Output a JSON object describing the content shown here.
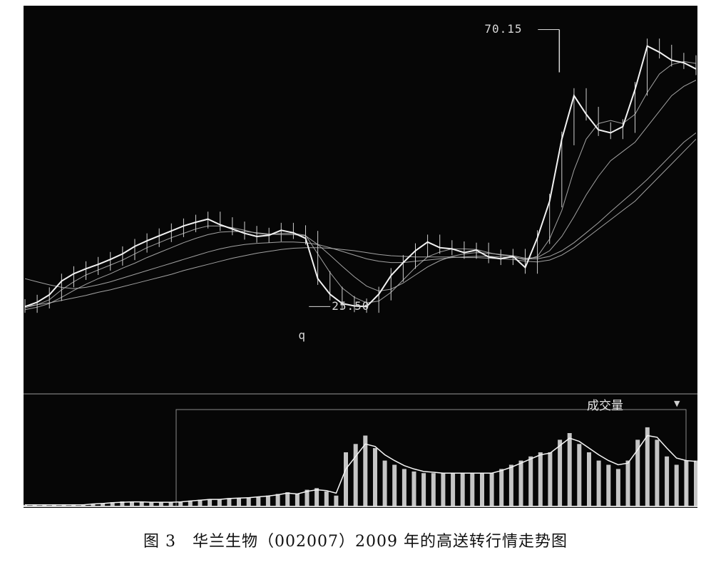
{
  "caption": "图 3　华兰生物（002007）2009 年的高送转行情走势图",
  "volume_panel": {
    "label": "成交量",
    "dropdown_icon": "triangle-down-icon"
  },
  "colors": {
    "background": "#060606",
    "price": "#f2f2f2",
    "ma": "#bdbdbd",
    "volume": "#e8e8e8",
    "text": "#d8d8d8"
  },
  "chart_data": [
    {
      "type": "candlestick",
      "title": "",
      "xlabel": "",
      "ylabel": "",
      "grid": false,
      "ylim": [
        12,
        74
      ],
      "annotations": [
        {
          "text": "70.15",
          "x": 172,
          "y": 70.15
        },
        {
          "text": "25.50",
          "x": 96,
          "y": 25.5
        },
        {
          "text": "q",
          "x": 88,
          "y": 22
        }
      ],
      "series": [
        {
          "values": [
            25.5,
            26.2,
            27.4,
            29.6,
            30.8,
            31.6,
            32.3,
            33.1,
            34.0,
            35.2,
            36.1,
            36.9,
            37.7,
            38.5,
            39.1,
            39.6,
            38.7,
            38.0,
            37.3,
            36.8,
            37.0,
            37.8,
            37.4,
            36.5,
            30.0,
            27.5,
            26.0,
            25.6,
            25.5,
            27.5,
            30.5,
            32.6,
            34.5,
            35.9,
            35.0,
            34.8,
            34.2,
            34.6,
            33.5,
            33.2,
            33.6,
            31.8,
            36.6,
            42.5,
            52.5,
            59.5,
            56.5,
            54.0,
            53.5,
            54.5,
            60.5,
            67.5,
            66.5,
            65.2,
            64.8,
            63.8
          ]
        }
      ],
      "moving_averages": [
        {
          "values": [
            25.3,
            25.8,
            26.6,
            28.2,
            29.5,
            30.6,
            31.4,
            32.2,
            33.0,
            34.0,
            35.0,
            35.8,
            36.6,
            37.3,
            38.0,
            38.5,
            38.5,
            38.2,
            37.8,
            37.3,
            37.1,
            37.3,
            37.3,
            37.0,
            34.0,
            31.0,
            28.5,
            27.0,
            26.1,
            26.4,
            27.8,
            29.8,
            31.8,
            33.5,
            34.3,
            34.8,
            34.8,
            34.7,
            34.2,
            33.8,
            33.6,
            33.0,
            33.6,
            36.4,
            41.0,
            47.5,
            52.5,
            55.0,
            55.5,
            55.0,
            56.5,
            60.0,
            63.0,
            64.5,
            65.0,
            64.7
          ]
        },
        {
          "values": [
            25.0,
            25.4,
            26.0,
            27.0,
            28.1,
            29.1,
            30.0,
            30.8,
            31.7,
            32.5,
            33.4,
            34.2,
            35.0,
            35.8,
            36.5,
            37.1,
            37.5,
            37.6,
            37.6,
            37.4,
            37.2,
            37.1,
            37.1,
            36.9,
            35.5,
            33.8,
            32.0,
            30.3,
            28.8,
            28.0,
            28.3,
            29.3,
            30.6,
            31.9,
            32.9,
            33.6,
            34.0,
            34.2,
            34.1,
            33.9,
            33.7,
            33.3,
            33.4,
            34.5,
            36.8,
            40.0,
            43.5,
            46.5,
            49.0,
            50.5,
            52.0,
            54.5,
            57.0,
            59.5,
            61.0,
            62.0
          ]
        },
        {
          "values": [
            30.0,
            29.5,
            29.0,
            28.6,
            28.4,
            28.6,
            29.0,
            29.5,
            30.1,
            30.7,
            31.3,
            31.9,
            32.5,
            33.1,
            33.7,
            34.3,
            34.8,
            35.2,
            35.5,
            35.7,
            35.8,
            35.9,
            35.9,
            35.8,
            35.5,
            35.0,
            34.4,
            33.8,
            33.2,
            32.8,
            32.6,
            32.6,
            32.8,
            33.0,
            33.2,
            33.4,
            33.5,
            33.6,
            33.6,
            33.5,
            33.4,
            33.2,
            33.2,
            33.6,
            34.5,
            35.8,
            37.4,
            39.0,
            40.8,
            42.5,
            44.2,
            46.0,
            48.0,
            50.0,
            52.0,
            53.5
          ]
        },
        {
          "values": [
            25.5,
            25.8,
            26.1,
            26.5,
            26.9,
            27.3,
            27.8,
            28.2,
            28.7,
            29.2,
            29.7,
            30.2,
            30.7,
            31.3,
            31.8,
            32.3,
            32.8,
            33.3,
            33.7,
            34.1,
            34.4,
            34.7,
            34.9,
            35.0,
            35.0,
            34.9,
            34.7,
            34.5,
            34.2,
            33.9,
            33.7,
            33.6,
            33.5,
            33.5,
            33.5,
            33.5,
            33.4,
            33.4,
            33.3,
            33.2,
            33.1,
            32.8,
            32.7,
            33.0,
            33.8,
            35.0,
            36.5,
            38.0,
            39.5,
            41.0,
            42.5,
            44.5,
            46.5,
            48.5,
            50.5,
            52.5
          ]
        }
      ]
    },
    {
      "type": "bar",
      "title": "成交量",
      "xlabel": "",
      "ylabel": "",
      "grid": false,
      "ylim": [
        0,
        10
      ],
      "series": [
        {
          "values": [
            0.2,
            0.2,
            0.2,
            0.2,
            0.2,
            0.2,
            0.2,
            0.3,
            0.4,
            0.5,
            0.6,
            0.6,
            0.6,
            0.5,
            0.5,
            0.5,
            0.6,
            0.7,
            0.8,
            0.9,
            0.9,
            1.0,
            1.0,
            1.1,
            1.2,
            1.3,
            1.5,
            1.7,
            1.5,
            2.0,
            2.2,
            1.8,
            1.3,
            6.5,
            7.5,
            8.5,
            7.0,
            5.5,
            5.0,
            4.5,
            4.2,
            4.0,
            4.0,
            4.0,
            4.0,
            4.0,
            4.0,
            4.0,
            4.0,
            4.5,
            5.0,
            5.5,
            6.0,
            6.5,
            6.5,
            8.0,
            8.8,
            7.5,
            6.5,
            5.5,
            5.0,
            4.5,
            5.5,
            8.0,
            9.5,
            8.0,
            6.0,
            5.0,
            5.5,
            5.5
          ]
        },
        {
          "values": [
            0.2,
            0.2,
            0.2,
            0.2,
            0.2,
            0.2,
            0.2,
            0.3,
            0.35,
            0.45,
            0.5,
            0.55,
            0.55,
            0.5,
            0.5,
            0.5,
            0.55,
            0.65,
            0.75,
            0.85,
            0.85,
            0.95,
            1.0,
            1.05,
            1.15,
            1.25,
            1.4,
            1.6,
            1.5,
            1.8,
            2.0,
            1.9,
            1.6,
            4.5,
            6.0,
            7.5,
            7.2,
            6.2,
            5.5,
            4.9,
            4.5,
            4.2,
            4.1,
            4.0,
            4.0,
            4.0,
            4.0,
            4.0,
            4.0,
            4.3,
            4.7,
            5.2,
            5.7,
            6.2,
            6.4,
            7.3,
            8.2,
            7.8,
            7.0,
            6.2,
            5.5,
            5.0,
            5.2,
            6.8,
            8.5,
            8.3,
            7.0,
            5.8,
            5.5,
            5.4
          ]
        }
      ]
    }
  ]
}
